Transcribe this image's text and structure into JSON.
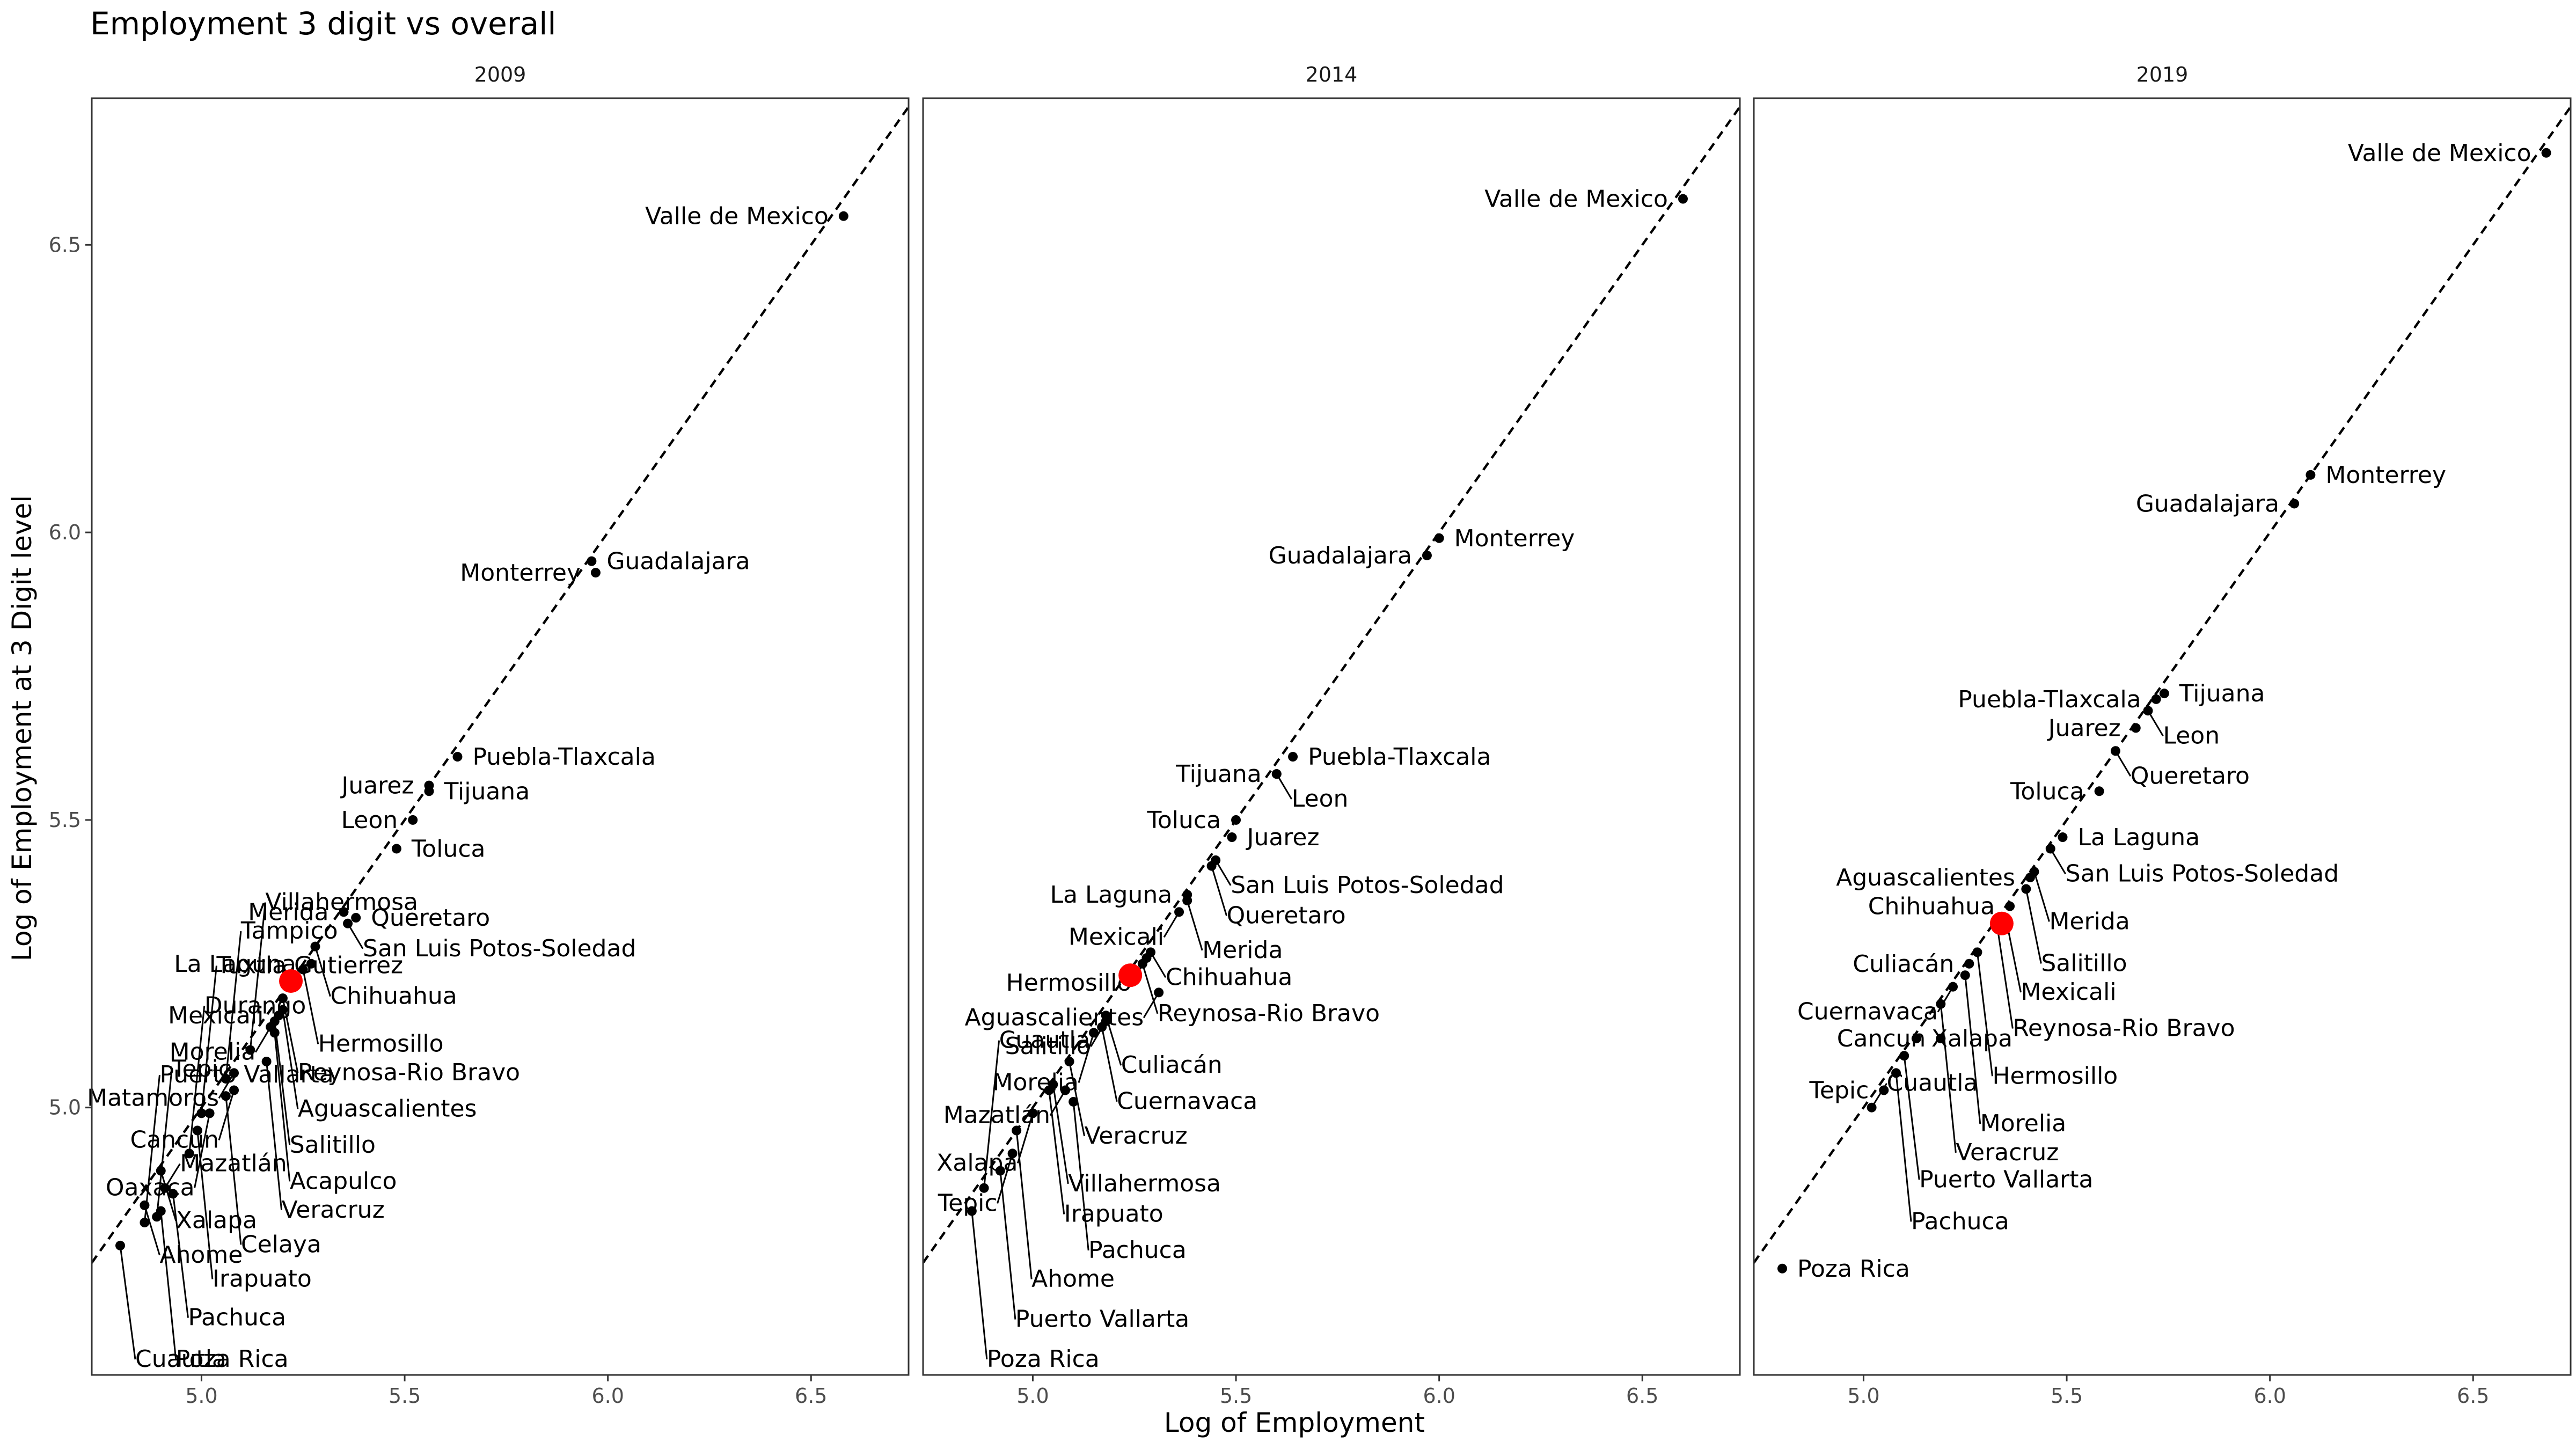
{
  "chart_data": {
    "type": "scatter",
    "title": "Employment 3 digit vs overall",
    "xlabel": "Log of Employment",
    "ylabel": "Log of Employment at 3 Digit level",
    "xlim": [
      4.73,
      6.74
    ],
    "ylim": [
      4.535,
      6.755
    ],
    "xticks": [
      "5.0",
      "5.5",
      "6.0",
      "6.5"
    ],
    "yticks": [
      "5.0",
      "5.5",
      "6.0",
      "6.5"
    ],
    "reference_line": "y = x (dashed)",
    "grid": false,
    "highlight_color": "#ff0000",
    "point_color": "#000000",
    "panels": [
      {
        "name": "2009",
        "highlight": {
          "x": 5.22,
          "y": 5.22
        },
        "points": [
          {
            "label": "Valle de Mexico",
            "x": 6.58,
            "y": 6.55
          },
          {
            "label": "Guadalajara",
            "x": 5.96,
            "y": 5.95
          },
          {
            "label": "Monterrey",
            "x": 5.97,
            "y": 5.93
          },
          {
            "label": "Puebla-Tlaxcala",
            "x": 5.63,
            "y": 5.61
          },
          {
            "label": "Juarez",
            "x": 5.56,
            "y": 5.56
          },
          {
            "label": "Tijuana",
            "x": 5.56,
            "y": 5.55
          },
          {
            "label": "Leon",
            "x": 5.52,
            "y": 5.5
          },
          {
            "label": "Toluca",
            "x": 5.48,
            "y": 5.45
          },
          {
            "label": "Merida",
            "x": 5.35,
            "y": 5.34
          },
          {
            "label": "Queretaro",
            "x": 5.38,
            "y": 5.33
          },
          {
            "label": "San Luis Potos-Soledad",
            "x": 5.36,
            "y": 5.32
          },
          {
            "label": "Chihuahua",
            "x": 5.28,
            "y": 5.28
          },
          {
            "label": "La Laguna",
            "x": 5.27,
            "y": 5.25
          },
          {
            "label": "Hermosillo",
            "x": 5.25,
            "y": 5.24
          },
          {
            "label": "Reynosa-Rio Bravo",
            "x": 5.2,
            "y": 5.19
          },
          {
            "label": "Aguascalientes",
            "x": 5.2,
            "y": 5.17
          },
          {
            "label": "Mexicali",
            "x": 5.19,
            "y": 5.16
          },
          {
            "label": "Salitillo",
            "x": 5.18,
            "y": 5.15
          },
          {
            "label": "Morelia",
            "x": 5.17,
            "y": 5.14
          },
          {
            "label": "Acapulco",
            "x": 5.18,
            "y": 5.13
          },
          {
            "label": "Villahermosa",
            "x": 5.12,
            "y": 5.1
          },
          {
            "label": "Veracruz",
            "x": 5.16,
            "y": 5.08
          },
          {
            "label": "Matamoros",
            "x": 5.08,
            "y": 5.06
          },
          {
            "label": "Tampico",
            "x": 5.06,
            "y": 5.05
          },
          {
            "label": "Cancun",
            "x": 5.08,
            "y": 5.03
          },
          {
            "label": "Celaya",
            "x": 5.06,
            "y": 5.02
          },
          {
            "label": "Oaxaca",
            "x": 5.02,
            "y": 4.99
          },
          {
            "label": "Tuxtla Gutierrez",
            "x": 5.0,
            "y": 4.99
          },
          {
            "label": "Irapuato",
            "x": 4.99,
            "y": 4.96
          },
          {
            "label": "Durango",
            "x": 4.97,
            "y": 4.92
          },
          {
            "label": "Xalapa",
            "x": 4.9,
            "y": 4.89
          },
          {
            "label": "Mazatlán",
            "x": 4.91,
            "y": 4.86
          },
          {
            "label": "Pachuca",
            "x": 4.93,
            "y": 4.85
          },
          {
            "label": "Ahome",
            "x": 4.86,
            "y": 4.83
          },
          {
            "label": "Poza Rica",
            "x": 4.9,
            "y": 4.82
          },
          {
            "label": "Tepic",
            "x": 4.89,
            "y": 4.81
          },
          {
            "label": "Puerto Vallarta",
            "x": 4.86,
            "y": 4.8
          },
          {
            "label": "Cuautla",
            "x": 4.8,
            "y": 4.76
          }
        ]
      },
      {
        "name": "2014",
        "highlight": {
          "x": 5.24,
          "y": 5.23
        },
        "points": [
          {
            "label": "Valle de Mexico",
            "x": 6.6,
            "y": 6.58
          },
          {
            "label": "Monterrey",
            "x": 6.0,
            "y": 5.99
          },
          {
            "label": "Guadalajara",
            "x": 5.97,
            "y": 5.96
          },
          {
            "label": "Puebla-Tlaxcala",
            "x": 5.64,
            "y": 5.61
          },
          {
            "label": "Tijuana",
            "x": 5.6,
            "y": 5.58
          },
          {
            "label": "Leon",
            "x": 5.6,
            "y": 5.58
          },
          {
            "label": "Toluca",
            "x": 5.5,
            "y": 5.5
          },
          {
            "label": "Juarez",
            "x": 5.49,
            "y": 5.47
          },
          {
            "label": "San Luis Potos-Soledad",
            "x": 5.45,
            "y": 5.43
          },
          {
            "label": "Queretaro",
            "x": 5.44,
            "y": 5.42
          },
          {
            "label": "La Laguna",
            "x": 5.38,
            "y": 5.37
          },
          {
            "label": "Merida",
            "x": 5.38,
            "y": 5.36
          },
          {
            "label": "Mexicali",
            "x": 5.36,
            "y": 5.34
          },
          {
            "label": "Chihuahua",
            "x": 5.29,
            "y": 5.27
          },
          {
            "label": "Hermosillo",
            "x": 5.28,
            "y": 5.26
          },
          {
            "label": "Reynosa-Rio Bravo",
            "x": 5.27,
            "y": 5.25
          },
          {
            "label": "Aguascalientes",
            "x": 5.31,
            "y": 5.2
          },
          {
            "label": "Culiacán",
            "x": 5.18,
            "y": 5.16
          },
          {
            "label": "Salitillo",
            "x": 5.18,
            "y": 5.15
          },
          {
            "label": "Cuernavaca",
            "x": 5.17,
            "y": 5.14
          },
          {
            "label": "Morelia",
            "x": 5.15,
            "y": 5.13
          },
          {
            "label": "Veracruz",
            "x": 5.09,
            "y": 5.08
          },
          {
            "label": "Villahermosa",
            "x": 5.05,
            "y": 5.04
          },
          {
            "label": "Irapuato",
            "x": 5.04,
            "y": 5.03
          },
          {
            "label": "Mazatlán",
            "x": 5.08,
            "y": 5.03
          },
          {
            "label": "Pachuca",
            "x": 5.1,
            "y": 5.01
          },
          {
            "label": "Xalapa",
            "x": 5.0,
            "y": 4.99
          },
          {
            "label": "Ahome",
            "x": 4.96,
            "y": 4.96
          },
          {
            "label": "Tepic",
            "x": 4.95,
            "y": 4.92
          },
          {
            "label": "Puerto Vallarta",
            "x": 4.92,
            "y": 4.89
          },
          {
            "label": "Cuautla",
            "x": 4.88,
            "y": 4.86
          },
          {
            "label": "Poza Rica",
            "x": 4.85,
            "y": 4.82
          }
        ]
      },
      {
        "name": "2019",
        "highlight": {
          "x": 5.34,
          "y": 5.32
        },
        "points": [
          {
            "label": "Valle de Mexico",
            "x": 6.68,
            "y": 6.66
          },
          {
            "label": "Monterrey",
            "x": 6.1,
            "y": 6.1
          },
          {
            "label": "Guadalajara",
            "x": 6.06,
            "y": 6.05
          },
          {
            "label": "Tijuana",
            "x": 5.74,
            "y": 5.72
          },
          {
            "label": "Puebla-Tlaxcala",
            "x": 5.72,
            "y": 5.71
          },
          {
            "label": "Leon",
            "x": 5.7,
            "y": 5.69
          },
          {
            "label": "Juarez",
            "x": 5.67,
            "y": 5.66
          },
          {
            "label": "Queretaro",
            "x": 5.62,
            "y": 5.62
          },
          {
            "label": "Toluca",
            "x": 5.58,
            "y": 5.55
          },
          {
            "label": "La Laguna",
            "x": 5.49,
            "y": 5.47
          },
          {
            "label": "San Luis Potos-Soledad",
            "x": 5.46,
            "y": 5.45
          },
          {
            "label": "Merida",
            "x": 5.42,
            "y": 5.41
          },
          {
            "label": "Aguascalientes",
            "x": 5.41,
            "y": 5.4
          },
          {
            "label": "Salitillo",
            "x": 5.4,
            "y": 5.38
          },
          {
            "label": "Chihuahua",
            "x": 5.36,
            "y": 5.35
          },
          {
            "label": "Mexicali",
            "x": 5.35,
            "y": 5.33
          },
          {
            "label": "Reynosa-Rio Bravo",
            "x": 5.33,
            "y": 5.31
          },
          {
            "label": "Hermosillo",
            "x": 5.28,
            "y": 5.27
          },
          {
            "label": "Culiacán",
            "x": 5.26,
            "y": 5.25
          },
          {
            "label": "Morelia",
            "x": 5.25,
            "y": 5.23
          },
          {
            "label": "Cuernavaca",
            "x": 5.22,
            "y": 5.21
          },
          {
            "label": "Veracruz",
            "x": 5.19,
            "y": 5.18
          },
          {
            "label": "Cancun",
            "x": 5.19,
            "y": 5.12
          },
          {
            "label": "Xalapa",
            "x": 5.13,
            "y": 5.12
          },
          {
            "label": "Puerto Vallarta",
            "x": 5.1,
            "y": 5.09
          },
          {
            "label": "Pachuca",
            "x": 5.08,
            "y": 5.06
          },
          {
            "label": "Tepic",
            "x": 5.05,
            "y": 5.03
          },
          {
            "label": "Cuautla",
            "x": 5.02,
            "y": 5.0
          },
          {
            "label": "Poza Rica",
            "x": 4.8,
            "y": 4.72
          }
        ]
      }
    ]
  }
}
